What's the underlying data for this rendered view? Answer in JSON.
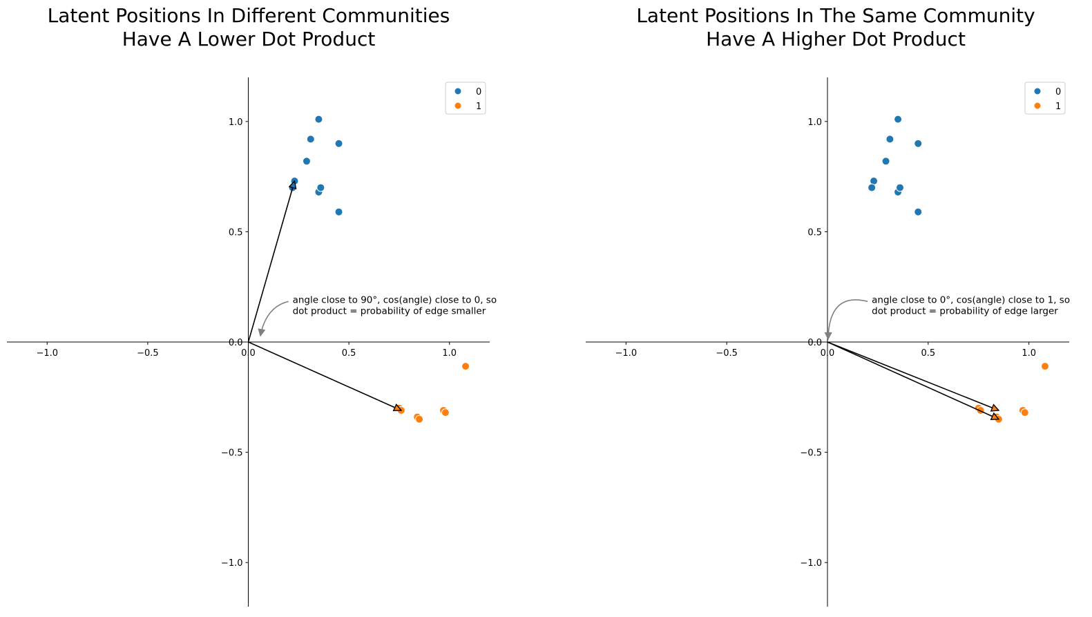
{
  "chart_data": [
    {
      "type": "scatter",
      "title_lines": [
        "Latent Positions In Different Communities",
        "Have A Lower Dot Product"
      ],
      "xlim": [
        -1.2,
        1.2
      ],
      "ylim": [
        -1.2,
        1.2
      ],
      "x_ticks": [
        "−1.0",
        "−0.5",
        "0.0",
        "0.5",
        "1.0"
      ],
      "y_ticks": [
        "−1.0",
        "−0.5",
        "0.0",
        "0.5",
        "1.0"
      ],
      "x_tick_values": [
        -1.0,
        -0.5,
        0.0,
        0.5,
        1.0
      ],
      "y_tick_values": [
        -1.0,
        -0.5,
        0.0,
        0.5,
        1.0
      ],
      "legend": {
        "placement": "top-right",
        "entries": [
          "0",
          "1"
        ]
      },
      "series": [
        {
          "name": "0",
          "color": "#1f77b4",
          "points": [
            [
              0.23,
              0.73
            ],
            [
              0.22,
              0.7
            ],
            [
              0.29,
              0.82
            ],
            [
              0.31,
              0.92
            ],
            [
              0.35,
              1.01
            ],
            [
              0.45,
              0.9
            ],
            [
              0.35,
              0.68
            ],
            [
              0.36,
              0.7
            ],
            [
              0.45,
              0.59
            ]
          ]
        },
        {
          "name": "1",
          "color": "#ff7f0e",
          "points": [
            [
              0.75,
              -0.3
            ],
            [
              0.76,
              -0.31
            ],
            [
              0.84,
              -0.34
            ],
            [
              0.85,
              -0.35
            ],
            [
              0.97,
              -0.31
            ],
            [
              0.98,
              -0.32
            ],
            [
              1.08,
              -0.11
            ]
          ]
        }
      ],
      "vectors": [
        {
          "to": [
            0.23,
            0.73
          ],
          "head_color": "#1f77b4"
        },
        {
          "to": [
            0.76,
            -0.31
          ],
          "head_color": "#ff7f0e"
        }
      ],
      "annotation": {
        "lines": [
          "angle close to 90°, cos(angle) close to 0, so",
          "dot product = probability of edge smaller"
        ],
        "text_at": [
          0.22,
          0.14
        ],
        "arrow_to": [
          0.06,
          0.015
        ]
      }
    },
    {
      "type": "scatter",
      "title_lines": [
        "Latent Positions In The Same Community",
        "Have A Higher Dot Product"
      ],
      "xlim": [
        -1.2,
        1.2
      ],
      "ylim": [
        -1.2,
        1.2
      ],
      "x_ticks": [
        "−1.0",
        "−0.5",
        "0.0",
        "0.5",
        "1.0"
      ],
      "y_ticks": [
        "−1.0",
        "−0.5",
        "0.0",
        "0.5",
        "1.0"
      ],
      "x_tick_values": [
        -1.0,
        -0.5,
        0.0,
        0.5,
        1.0
      ],
      "y_tick_values": [
        -1.0,
        -0.5,
        0.0,
        0.5,
        1.0
      ],
      "legend": {
        "placement": "top-right",
        "entries": [
          "0",
          "1"
        ]
      },
      "series": [
        {
          "name": "0",
          "color": "#1f77b4",
          "points": [
            [
              0.23,
              0.73
            ],
            [
              0.22,
              0.7
            ],
            [
              0.29,
              0.82
            ],
            [
              0.31,
              0.92
            ],
            [
              0.35,
              1.01
            ],
            [
              0.45,
              0.9
            ],
            [
              0.35,
              0.68
            ],
            [
              0.36,
              0.7
            ],
            [
              0.45,
              0.59
            ]
          ]
        },
        {
          "name": "1",
          "color": "#ff7f0e",
          "points": [
            [
              0.75,
              -0.3
            ],
            [
              0.76,
              -0.31
            ],
            [
              0.84,
              -0.34
            ],
            [
              0.85,
              -0.35
            ],
            [
              0.97,
              -0.31
            ],
            [
              0.98,
              -0.32
            ],
            [
              1.08,
              -0.11
            ]
          ]
        }
      ],
      "vectors": [
        {
          "to": [
            0.85,
            -0.31
          ],
          "head_color": "#ff7f0e"
        },
        {
          "to": [
            0.85,
            -0.35
          ],
          "head_color": "#ff7f0e"
        }
      ],
      "annotation": {
        "lines": [
          "angle close to 0°, cos(angle) close to 1, so",
          "dot product = probability of edge larger"
        ],
        "text_at": [
          0.22,
          0.14
        ],
        "arrow_to": [
          0.0,
          0.0
        ]
      }
    }
  ]
}
